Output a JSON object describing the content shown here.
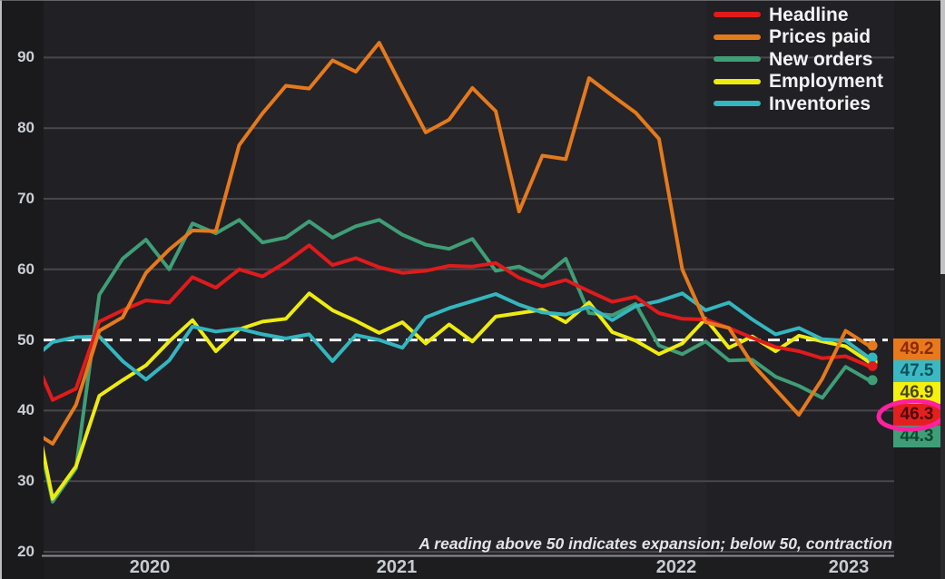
{
  "chart_data": {
    "type": "line",
    "title": "",
    "subtitle": "",
    "caption": "A reading above 50 indicates expansion; below 50, contraction",
    "frequency": "monthly",
    "x_months": [
      "2020-03",
      "2020-04",
      "2020-05",
      "2020-06",
      "2020-07",
      "2020-08",
      "2020-09",
      "2020-10",
      "2020-11",
      "2020-12",
      "2021-01",
      "2021-02",
      "2021-03",
      "2021-04",
      "2021-05",
      "2021-06",
      "2021-07",
      "2021-08",
      "2021-09",
      "2021-10",
      "2021-11",
      "2021-12",
      "2022-01",
      "2022-02",
      "2022-03",
      "2022-04",
      "2022-05",
      "2022-06",
      "2022-07",
      "2022-08",
      "2022-09",
      "2022-10",
      "2022-11",
      "2022-12",
      "2023-01",
      "2023-02",
      "2023-03"
    ],
    "x_tick_labels": [
      "2020",
      "2021",
      "2022",
      "2023"
    ],
    "y_ticks": [
      "20",
      "30",
      "40",
      "50",
      "60",
      "70",
      "80",
      "90"
    ],
    "ylim": [
      20,
      95
    ],
    "grid": "horizontal",
    "legend_position": "top-right",
    "reference_line": {
      "value": 50,
      "style": "dashed",
      "color": "#f5f5f5"
    },
    "series": [
      {
        "name": "Headline",
        "color": "#e01b1c",
        "end_value": 46.3,
        "values": [
          49.1,
          41.5,
          43.1,
          52.6,
          54.2,
          55.6,
          55.3,
          58.9,
          57.4,
          60.0,
          59.0,
          61.0,
          63.4,
          60.6,
          61.6,
          60.3,
          59.5,
          59.8,
          60.5,
          60.4,
          60.9,
          58.8,
          57.6,
          58.5,
          56.9,
          55.4,
          56.1,
          53.8,
          53.0,
          52.9,
          51.7,
          50.3,
          49.0,
          48.4,
          47.4,
          47.7,
          46.3
        ]
      },
      {
        "name": "Prices paid",
        "color": "#e57a1c",
        "end_value": 49.2,
        "values": [
          37.4,
          35.3,
          40.8,
          51.3,
          53.2,
          59.5,
          62.8,
          65.5,
          65.4,
          77.6,
          82.1,
          86.0,
          85.6,
          89.6,
          88.0,
          92.1,
          85.7,
          79.4,
          81.2,
          85.7,
          82.4,
          68.2,
          76.1,
          75.6,
          87.1,
          84.6,
          82.2,
          78.5,
          60.0,
          52.5,
          51.7,
          46.6,
          43.0,
          39.4,
          44.5,
          51.3,
          49.2
        ]
      },
      {
        "name": "New orders",
        "color": "#3f9e76",
        "end_value": 44.3,
        "values": [
          42.2,
          27.1,
          31.8,
          56.4,
          61.5,
          64.2,
          60.0,
          66.5,
          65.1,
          67.0,
          63.8,
          64.5,
          66.8,
          64.5,
          66.1,
          67.0,
          64.9,
          63.5,
          62.9,
          64.3,
          59.8,
          60.4,
          58.8,
          61.5,
          53.8,
          53.5,
          55.1,
          49.2,
          48.0,
          49.8,
          47.1,
          47.2,
          44.8,
          43.5,
          41.8,
          46.2,
          44.3
        ]
      },
      {
        "name": "Employment",
        "color": "#eeeb10",
        "end_value": 46.9,
        "values": [
          43.8,
          27.5,
          32.1,
          42.1,
          44.3,
          46.4,
          49.8,
          52.8,
          48.4,
          51.5,
          52.6,
          53.0,
          56.6,
          54.2,
          52.7,
          51.0,
          52.5,
          49.5,
          52.2,
          49.8,
          53.3,
          53.8,
          54.3,
          52.5,
          55.3,
          51.1,
          49.9,
          48.0,
          49.5,
          53.0,
          48.9,
          50.5,
          48.4,
          50.6,
          49.8,
          49.1,
          46.9
        ]
      },
      {
        "name": "Inventories",
        "color": "#33b6bf",
        "end_value": 47.5,
        "values": [
          46.9,
          49.7,
          50.4,
          50.5,
          47.0,
          44.4,
          47.1,
          51.9,
          51.2,
          51.6,
          50.8,
          50.2,
          50.8,
          47.0,
          50.7,
          50.0,
          48.9,
          53.2,
          54.5,
          55.5,
          56.5,
          55.0,
          53.9,
          53.6,
          54.7,
          52.8,
          54.8,
          55.5,
          56.6,
          54.2,
          55.3,
          52.9,
          50.8,
          51.7,
          50.1,
          49.9,
          47.5
        ]
      }
    ],
    "end_labels": [
      {
        "text": "49.2",
        "series": "Prices paid",
        "bg": "#e8791c",
        "fg": "#8a2a05"
      },
      {
        "text": "47.5",
        "series": "Inventories",
        "bg": "#3cb8c2",
        "fg": "#0c535c"
      },
      {
        "text": "46.9",
        "series": "Employment",
        "bg": "#f5f00e",
        "fg": "#474710"
      },
      {
        "text": "46.3",
        "series": "Headline",
        "bg": "#e3201f",
        "fg": "#4d0a0a",
        "annotated": true
      },
      {
        "text": "44.3",
        "series": "New orders",
        "bg": "#3f9e78",
        "fg": "#0d4a2c"
      }
    ],
    "annotation": {
      "type": "ellipse",
      "color": "#ff219f",
      "target": "46.3"
    }
  }
}
